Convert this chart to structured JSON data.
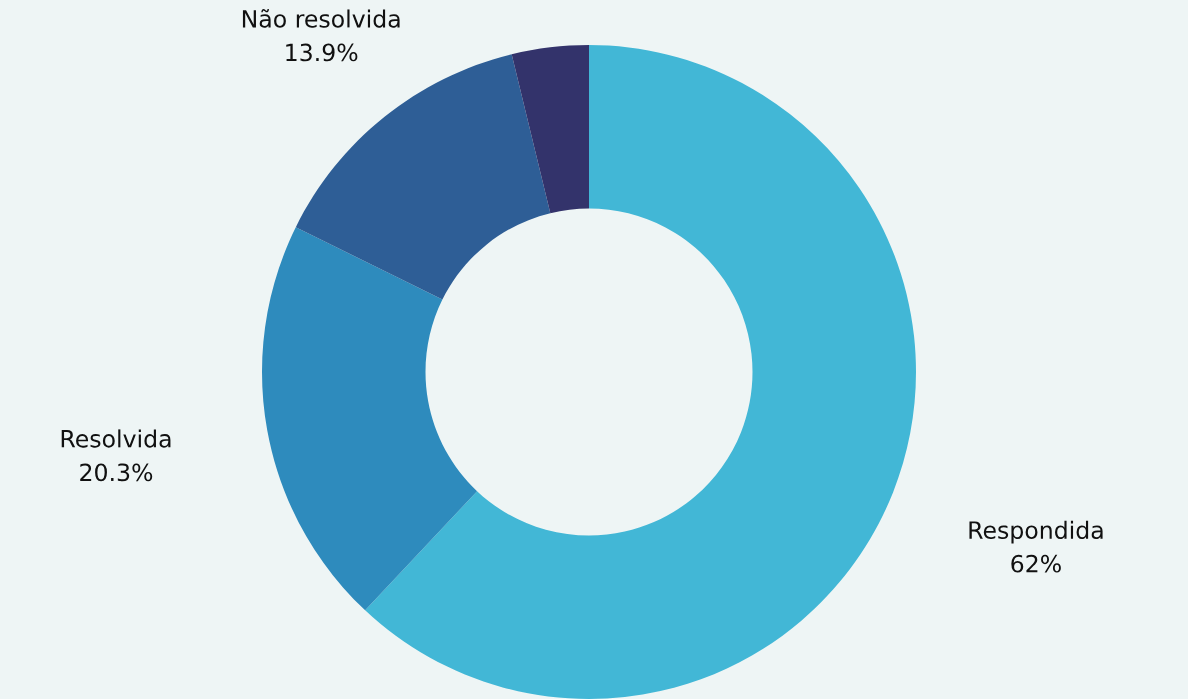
{
  "chart_data": {
    "type": "donut",
    "categories": [
      "Respondida",
      "Resolvida",
      "Não resolvida",
      null
    ],
    "values": [
      62,
      20.3,
      13.9,
      3.8
    ],
    "colors": [
      "#42b7d6",
      "#2e8bbd",
      "#2e5e96",
      "#33336b"
    ],
    "value_labels": [
      "62%",
      "20.3%",
      "13.9%",
      null
    ]
  }
}
